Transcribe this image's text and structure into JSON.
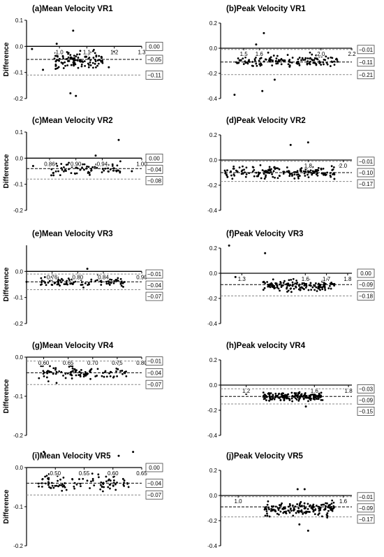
{
  "chart_data": [
    {
      "type": "scatter",
      "title": "(a)Mean Velocity VR1",
      "ylabel": "Difference",
      "ylim": [
        -0.2,
        0.1
      ],
      "yticks": [
        -0.2,
        -0.1,
        0.0,
        0.1
      ],
      "xticks": [
        {
          "v": 1.0,
          "l": "1.0"
        },
        {
          "v": 1.1,
          "l": "1.1"
        },
        {
          "v": 1.2,
          "l": "1.2"
        },
        {
          "v": 1.3,
          "l": "1.3"
        }
      ],
      "xlim": [
        0.88,
        1.3
      ],
      "lines": {
        "upper": 0.0,
        "mean": -0.05,
        "lower": -0.11
      },
      "labels": [
        "0.00",
        "−0.05",
        "−0.11"
      ],
      "cluster": {
        "xmin": 0.98,
        "xmax": 1.16,
        "ymin": -0.1,
        "ymax": 0.0,
        "n": 120
      },
      "outliers": [
        [
          0.9,
          -0.01
        ],
        [
          0.94,
          -0.09
        ],
        [
          1.05,
          0.06
        ],
        [
          1.04,
          -0.18
        ],
        [
          1.06,
          -0.19
        ],
        [
          1.18,
          -0.08
        ],
        [
          1.2,
          -0.02
        ],
        [
          0.99,
          0.01
        ]
      ]
    },
    {
      "type": "scatter",
      "title": "(b)Peak Velocity VR1",
      "ylabel": "",
      "ylim": [
        -0.4,
        0.2
      ],
      "yticks": [
        -0.4,
        -0.2,
        0.0,
        0.2
      ],
      "xticks": [
        {
          "v": 1.5,
          "l": "1.5"
        },
        {
          "v": 1.6,
          "l": "1.6"
        },
        {
          "v": 2.0,
          "l": "2.0"
        },
        {
          "v": 2.2,
          "l": "2.2"
        }
      ],
      "xlim": [
        1.35,
        2.2
      ],
      "lines": {
        "upper": -0.01,
        "mean": -0.11,
        "lower": -0.21
      },
      "labels": [
        "−0.01",
        "−0.11",
        "−0.21"
      ],
      "cluster": {
        "xmin": 1.45,
        "xmax": 2.12,
        "ymin": -0.18,
        "ymax": -0.02,
        "n": 140
      },
      "outliers": [
        [
          1.63,
          0.12
        ],
        [
          1.44,
          -0.37
        ],
        [
          1.62,
          -0.34
        ],
        [
          1.58,
          0.03
        ],
        [
          1.7,
          -0.25
        ]
      ]
    },
    {
      "type": "scatter",
      "title": "(c)Mean Velocity VR2",
      "ylabel": "Difference",
      "ylim": [
        -0.2,
        0.1
      ],
      "yticks": [
        -0.2,
        -0.1,
        0.0,
        0.1
      ],
      "xticks": [
        {
          "v": 0.86,
          "l": "0.86"
        },
        {
          "v": 0.9,
          "l": "0.90"
        },
        {
          "v": 0.94,
          "l": "0.94"
        },
        {
          "v": 1.0,
          "l": "1.00"
        }
      ],
      "xlim": [
        0.825,
        1.0
      ],
      "lines": {
        "upper": 0.0,
        "mean": -0.04,
        "lower": -0.08
      },
      "labels": [
        "0.00",
        "−0.04",
        "−0.08"
      ],
      "cluster": {
        "xmin": 0.86,
        "xmax": 0.97,
        "ymin": -0.08,
        "ymax": 0.0,
        "n": 85
      },
      "outliers": [
        [
          0.965,
          0.07
        ],
        [
          0.93,
          0.01
        ],
        [
          0.835,
          -0.03
        ],
        [
          0.985,
          -0.05
        ]
      ]
    },
    {
      "type": "scatter",
      "title": "(d)Peak Velocity VR2",
      "ylabel": "",
      "ylim": [
        -0.4,
        0.2
      ],
      "yticks": [
        -0.4,
        -0.2,
        0.0,
        0.2
      ],
      "xticks": [
        {
          "v": 1.8,
          "l": "1.8"
        },
        {
          "v": 2.0,
          "l": "2.0"
        }
      ],
      "xlim": [
        1.3,
        2.05
      ],
      "lines": {
        "upper": -0.01,
        "mean": -0.1,
        "lower": -0.17
      },
      "labels": [
        "−0.01",
        "−0.10",
        "−0.17"
      ],
      "cluster": {
        "xmin": 1.32,
        "xmax": 1.95,
        "ymin": -0.16,
        "ymax": -0.03,
        "n": 170
      },
      "outliers": [
        [
          1.7,
          0.12
        ],
        [
          1.8,
          0.14
        ],
        [
          1.98,
          -0.04
        ],
        [
          1.95,
          -0.15
        ]
      ]
    },
    {
      "type": "scatter",
      "title": "(e)Mean Velocity VR3",
      "ylabel": "Difference",
      "ylim": [
        -0.2,
        0.1
      ],
      "yticks": [
        -0.2,
        -0.1,
        0.0
      ],
      "xticks": [
        {
          "v": 0.76,
          "l": "0.76"
        },
        {
          "v": 0.8,
          "l": "0.80"
        },
        {
          "v": 0.84,
          "l": "0.84"
        },
        {
          "v": 0.9,
          "l": "0.90"
        }
      ],
      "xlim": [
        0.72,
        0.9
      ],
      "lines": {
        "upper": -0.01,
        "mean": -0.04,
        "lower": -0.07
      },
      "labels": [
        "−0.01",
        "−0.04",
        "−0.07"
      ],
      "cluster": {
        "xmin": 0.735,
        "xmax": 0.875,
        "ymin": -0.07,
        "ymax": -0.01,
        "n": 95
      },
      "outliers": [
        [
          0.815,
          0.01
        ],
        [
          0.72,
          -0.04
        ]
      ]
    },
    {
      "type": "scatter",
      "title": "(f)Peak Velocity VR3",
      "ylabel": "",
      "ylim": [
        -0.4,
        0.2
      ],
      "yticks": [
        -0.4,
        -0.2,
        0.0,
        0.2
      ],
      "xticks": [
        {
          "v": 1.3,
          "l": "1.3"
        },
        {
          "v": 1.6,
          "l": "1.6"
        },
        {
          "v": 1.7,
          "l": "1.7"
        },
        {
          "v": 1.8,
          "l": "1.8"
        }
      ],
      "xlim": [
        1.2,
        1.82
      ],
      "lines": {
        "upper": 0.0,
        "mean": -0.09,
        "lower": -0.18
      },
      "labels": [
        "0.00",
        "−0.09",
        "−0.18"
      ],
      "cluster": {
        "xmin": 1.4,
        "xmax": 1.74,
        "ymin": -0.16,
        "ymax": -0.03,
        "n": 150
      },
      "outliers": [
        [
          1.24,
          0.22
        ],
        [
          1.41,
          0.16
        ],
        [
          1.27,
          -0.03
        ]
      ]
    },
    {
      "type": "scatter",
      "title": "(g)Mean Velocity VR4",
      "ylabel": "Difference",
      "ylim": [
        -0.2,
        0.0
      ],
      "yticks": [
        -0.2,
        -0.1,
        0.0
      ],
      "xticks": [
        {
          "v": 0.6,
          "l": "0.60"
        },
        {
          "v": 0.65,
          "l": "0.65"
        },
        {
          "v": 0.7,
          "l": "0.70"
        },
        {
          "v": 0.75,
          "l": "0.75"
        },
        {
          "v": 0.8,
          "l": "0.80"
        }
      ],
      "xlim": [
        0.565,
        0.8
      ],
      "lines": {
        "upper": -0.01,
        "mean": -0.04,
        "lower": -0.07
      },
      "labels": [
        "−0.01",
        "−0.04",
        "−0.07"
      ],
      "cluster": {
        "xmin": 0.59,
        "xmax": 0.77,
        "ymin": -0.07,
        "ymax": -0.01,
        "n": 100
      },
      "outliers": []
    },
    {
      "type": "scatter",
      "title": "(h)Peak velocity VR4",
      "ylabel": "",
      "ylim": [
        -0.4,
        0.2
      ],
      "yticks": [
        -0.4,
        -0.2,
        0.0,
        0.2
      ],
      "xticks": [
        {
          "v": 1.2,
          "l": "1.2"
        },
        {
          "v": 1.6,
          "l": "1.6"
        },
        {
          "v": 1.8,
          "l": "1.8"
        }
      ],
      "xlim": [
        1.05,
        1.82
      ],
      "lines": {
        "upper": -0.03,
        "mean": -0.09,
        "lower": -0.15
      },
      "labels": [
        "−0.03",
        "−0.09",
        "−0.15"
      ],
      "cluster": {
        "xmin": 1.3,
        "xmax": 1.65,
        "ymin": -0.14,
        "ymax": -0.04,
        "n": 170
      },
      "outliers": [
        [
          1.2,
          -0.07
        ],
        [
          1.55,
          -0.17
        ]
      ]
    },
    {
      "type": "scatter",
      "title": "(i)Mean Velocity VR5",
      "ylabel": "Difference",
      "ylim": [
        -0.2,
        0.0
      ],
      "yticks": [
        -0.2,
        -0.1,
        0.0
      ],
      "xticks": [
        {
          "v": 0.5,
          "l": "0.50"
        },
        {
          "v": 0.55,
          "l": "0.55"
        },
        {
          "v": 0.6,
          "l": "0.60"
        },
        {
          "v": 0.65,
          "l": "0.65"
        }
      ],
      "xlim": [
        0.45,
        0.65
      ],
      "lines": {
        "upper": 0.0,
        "mean": -0.04,
        "lower": -0.07
      },
      "labels": [
        "0.00",
        "−0.04",
        "−0.07"
      ],
      "cluster": {
        "xmin": 0.47,
        "xmax": 0.63,
        "ymin": -0.07,
        "ymax": -0.01,
        "n": 95
      },
      "outliers": [
        [
          0.48,
          0.04
        ],
        [
          0.635,
          0.04
        ],
        [
          0.61,
          0.03
        ]
      ]
    },
    {
      "type": "scatter",
      "title": "(j)Peak Velocity VR5",
      "ylabel": "",
      "ylim": [
        -0.4,
        0.2
      ],
      "yticks": [
        -0.4,
        -0.2,
        0.0,
        0.2
      ],
      "xticks": [
        {
          "v": 1.0,
          "l": "1.0"
        },
        {
          "v": 1.6,
          "l": "1.6"
        }
      ],
      "xlim": [
        0.9,
        1.65
      ],
      "lines": {
        "upper": -0.01,
        "mean": -0.09,
        "lower": -0.17
      },
      "labels": [
        "−0.01",
        "−0.09",
        "−0.17"
      ],
      "cluster": {
        "xmin": 1.15,
        "xmax": 1.55,
        "ymin": -0.19,
        "ymax": -0.03,
        "n": 160
      },
      "outliers": [
        [
          1.34,
          0.05
        ],
        [
          1.38,
          0.05
        ],
        [
          1.4,
          -0.28
        ],
        [
          1.35,
          -0.23
        ]
      ]
    }
  ]
}
